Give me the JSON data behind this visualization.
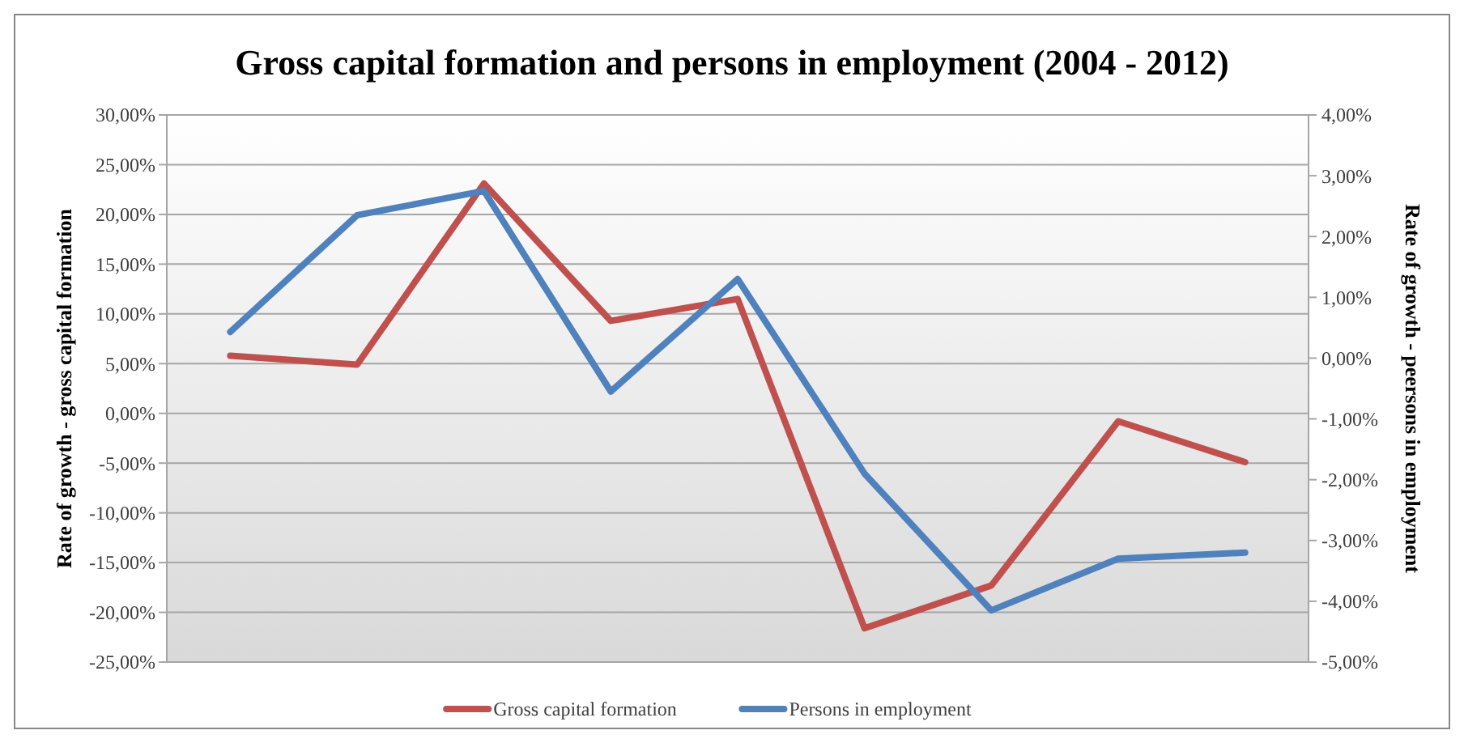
{
  "chart_data": {
    "type": "line",
    "title": "Gross capital formation and persons in employment (2004 - 2012)",
    "ylabel": "Rate of growth - gross capital formation",
    "y2label": "Rate of growth - peersons in employment",
    "categories": [
      null,
      null,
      null,
      null,
      null,
      null,
      null,
      null,
      null
    ],
    "series": [
      {
        "name": "Gross capital formation",
        "color": "#c0504d",
        "values": [
          5.8,
          4.9,
          23.1,
          9.3,
          11.5,
          -21.6,
          -17.3,
          -0.8,
          -4.9
        ]
      },
      {
        "name": "Persons in employment",
        "color": "#4f81bd",
        "axis": "y2",
        "values": [
          0.43,
          2.35,
          2.75,
          -0.55,
          1.3,
          -1.9,
          -4.15,
          -3.3,
          -3.2
        ]
      }
    ],
    "ylim": [
      -25,
      30
    ],
    "yticks": [
      {
        "value": -25,
        "label": "-25,00%"
      },
      {
        "value": -20,
        "label": "-20,00%"
      },
      {
        "value": -15,
        "label": "-15,00%"
      },
      {
        "value": -10,
        "label": "-10,00%"
      },
      {
        "value": -5,
        "label": "-5,00%"
      },
      {
        "value": 0,
        "label": "0,00%"
      },
      {
        "value": 5,
        "label": "5,00%"
      },
      {
        "value": 10,
        "label": "10,00%"
      },
      {
        "value": 15,
        "label": "15,00%"
      },
      {
        "value": 20,
        "label": "20,00%"
      },
      {
        "value": 25,
        "label": "25,00%"
      },
      {
        "value": 30,
        "label": "30,00%"
      }
    ],
    "y2lim": [
      -5,
      4
    ],
    "y2ticks": [
      {
        "value": -5,
        "label": "-5,00%"
      },
      {
        "value": -4,
        "label": "-4,00%"
      },
      {
        "value": -3,
        "label": "-3,00%"
      },
      {
        "value": -2,
        "label": "-2,00%"
      },
      {
        "value": -1,
        "label": "-1,00%"
      },
      {
        "value": 0,
        "label": "0,00%"
      },
      {
        "value": 1,
        "label": "1,00%"
      },
      {
        "value": 2,
        "label": "2,00%"
      },
      {
        "value": 3,
        "label": "3,00%"
      },
      {
        "value": 4,
        "label": "4,00%"
      }
    ],
    "grid": "y",
    "legend": "bottom",
    "marker": "none",
    "line_style": "solid"
  }
}
